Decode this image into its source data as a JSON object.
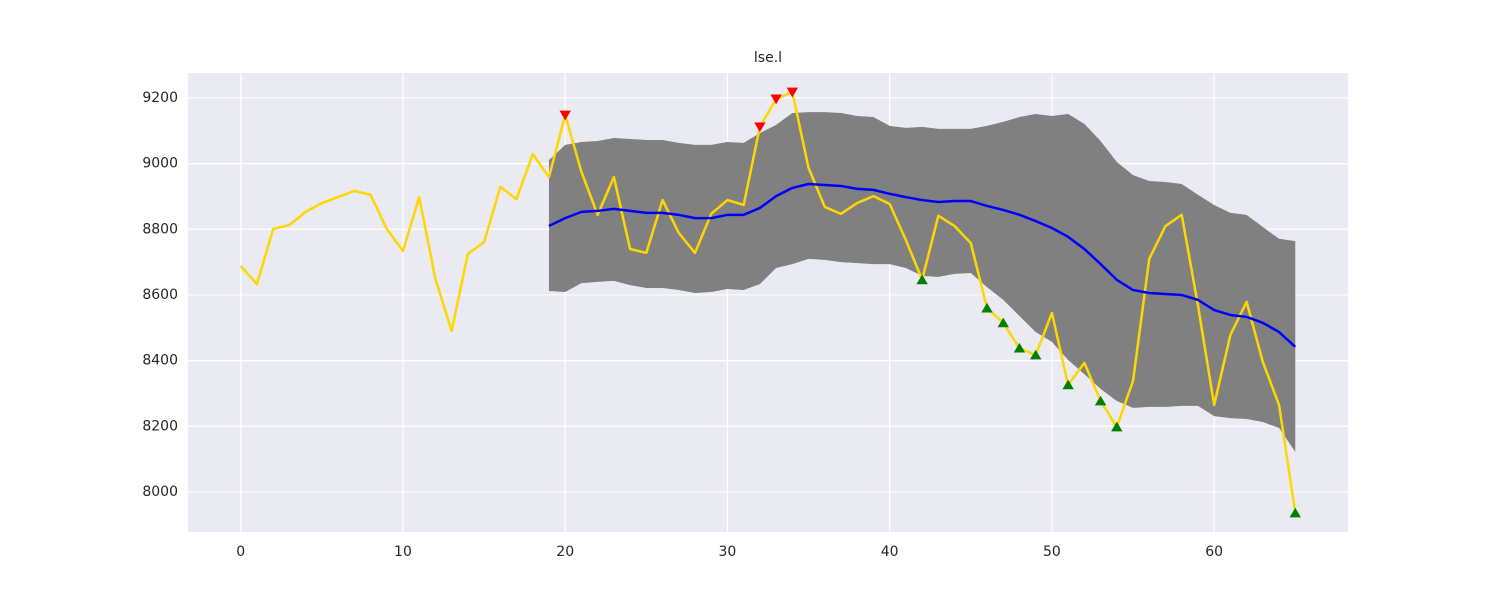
{
  "chart_data": {
    "type": "bollinger",
    "title": "lse.l",
    "xlim": [
      -3.25,
      68.25
    ],
    "ylim": [
      7878,
      9276
    ],
    "xticks": [
      0,
      10,
      20,
      30,
      40,
      50,
      60
    ],
    "yticks": [
      8000,
      8200,
      8400,
      8600,
      8800,
      9000,
      9200
    ],
    "grid": true,
    "background": "#eaeaf2",
    "series": [
      {
        "kind": "band",
        "color": "#808080",
        "x": [
          19,
          20,
          21,
          22,
          23,
          24,
          25,
          26,
          27,
          28,
          29,
          30,
          31,
          32,
          33,
          34,
          35,
          36,
          37,
          38,
          39,
          40,
          41,
          42,
          43,
          44,
          45,
          46,
          47,
          48,
          49,
          50,
          51,
          52,
          53,
          54,
          55,
          56,
          57,
          58,
          59,
          60,
          61,
          62,
          63,
          64,
          65
        ],
        "upper": [
          9011,
          9057,
          9066,
          9069,
          9078,
          9075,
          9072,
          9072,
          9063,
          9057,
          9057,
          9066,
          9063,
          9093,
          9118,
          9154,
          9157,
          9157,
          9154,
          9145,
          9142,
          9115,
          9109,
          9112,
          9106,
          9106,
          9106,
          9115,
          9127,
          9142,
          9151,
          9145,
          9151,
          9121,
          9069,
          9005,
          8965,
          8947,
          8944,
          8938,
          8905,
          8874,
          8850,
          8844,
          8807,
          8771,
          8764
        ],
        "lower": [
          8612,
          8609,
          8636,
          8640,
          8643,
          8630,
          8621,
          8621,
          8615,
          8606,
          8609,
          8618,
          8615,
          8633,
          8682,
          8694,
          8710,
          8707,
          8700,
          8697,
          8694,
          8694,
          8682,
          8658,
          8655,
          8664,
          8667,
          8624,
          8585,
          8536,
          8487,
          8457,
          8402,
          8359,
          8314,
          8277,
          8256,
          8259,
          8259,
          8262,
          8262,
          8231,
          8225,
          8222,
          8213,
          8195,
          8122
        ]
      },
      {
        "kind": "line",
        "color": "#ffd700",
        "x": [
          0,
          1,
          2,
          3,
          4,
          5,
          6,
          7,
          8,
          9,
          10,
          11,
          12,
          13,
          14,
          15,
          16,
          17,
          18,
          19,
          20,
          21,
          22,
          23,
          24,
          25,
          26,
          27,
          28,
          29,
          30,
          31,
          32,
          33,
          34,
          35,
          36,
          37,
          38,
          39,
          40,
          41,
          42,
          43,
          44,
          45,
          46,
          47,
          48,
          49,
          50,
          51,
          52,
          53,
          54,
          55,
          56,
          57,
          58,
          59,
          60,
          61,
          62,
          63,
          64,
          65
        ],
        "values": [
          8688,
          8633,
          8801,
          8813,
          8853,
          8880,
          8898,
          8917,
          8905,
          8801,
          8734,
          8898,
          8649,
          8490,
          8725,
          8761,
          8929,
          8892,
          9029,
          8959,
          9148,
          8975,
          8844,
          8959,
          8740,
          8728,
          8889,
          8789,
          8728,
          8847,
          8889,
          8874,
          9112,
          9197,
          9218,
          8987,
          8868,
          8847,
          8880,
          8901,
          8877,
          8767,
          8646,
          8841,
          8810,
          8758,
          8560,
          8515,
          8438,
          8417,
          8545,
          8326,
          8393,
          8277,
          8198,
          8338,
          8710,
          8810,
          8844,
          8569,
          8265,
          8478,
          8579,
          8396,
          8265,
          7936
        ]
      },
      {
        "kind": "line",
        "color": "#0000ff",
        "x": [
          19,
          20,
          21,
          22,
          23,
          24,
          25,
          26,
          27,
          28,
          29,
          30,
          31,
          32,
          33,
          34,
          35,
          36,
          37,
          38,
          39,
          40,
          41,
          42,
          43,
          44,
          45,
          46,
          47,
          48,
          49,
          50,
          51,
          52,
          53,
          54,
          55,
          56,
          57,
          58,
          59,
          60,
          61,
          62,
          63,
          64,
          65
        ],
        "values": [
          8810,
          8834,
          8853,
          8856,
          8862,
          8856,
          8850,
          8850,
          8844,
          8834,
          8834,
          8844,
          8844,
          8865,
          8901,
          8926,
          8938,
          8935,
          8932,
          8923,
          8920,
          8908,
          8898,
          8889,
          8883,
          8886,
          8886,
          8871,
          8859,
          8844,
          8825,
          8804,
          8777,
          8740,
          8694,
          8646,
          8615,
          8606,
          8603,
          8600,
          8585,
          8554,
          8539,
          8533,
          8515,
          8487,
          8442
        ]
      },
      {
        "kind": "marker",
        "marker": "down",
        "color": "#ff0000",
        "x": [
          20,
          32,
          33,
          34
        ],
        "values": [
          9148,
          9112,
          9197,
          9218
        ]
      },
      {
        "kind": "marker",
        "marker": "up",
        "color": "#008000",
        "x": [
          42,
          46,
          47,
          48,
          49,
          51,
          53,
          54,
          65
        ],
        "values": [
          8646,
          8560,
          8515,
          8438,
          8417,
          8326,
          8277,
          8198,
          7936
        ]
      }
    ]
  }
}
